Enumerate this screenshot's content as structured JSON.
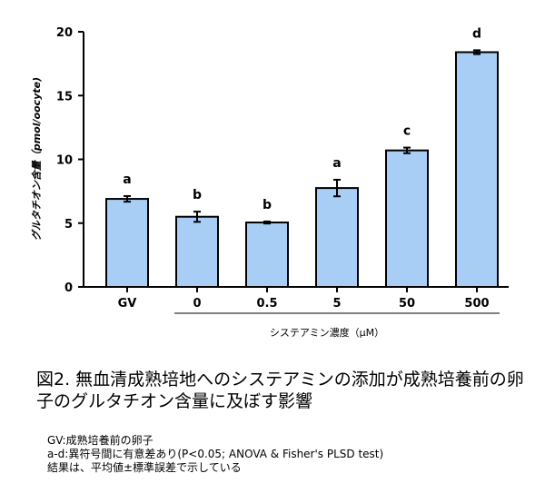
{
  "chart_data": {
    "type": "bar",
    "ylabel": "グルタチオン含量（pmol/oocyte)",
    "xlabel": "システアミン濃度（μM）",
    "categories": [
      "GV",
      "0",
      "0.5",
      "5",
      "50",
      "500"
    ],
    "values": [
      6.9,
      5.5,
      5.05,
      7.75,
      10.7,
      18.4
    ],
    "errors": [
      0.22,
      0.4,
      0.08,
      0.65,
      0.22,
      0.15
    ],
    "significance_letters": [
      "a",
      "b",
      "b",
      "a",
      "c",
      "d"
    ],
    "ylim": [
      0,
      20
    ],
    "yticks": [
      "0",
      "5",
      "10",
      "15",
      "20"
    ],
    "grid": false,
    "bar_color": "#a8cef5"
  },
  "figure": {
    "caption": "図2. 無血清成熟培地へのシステアミンの添加が成熟培養前の卵子のグルタチオン含量に及ぼす影響",
    "notes": [
      "GV:成熟培養前の卵子",
      "a-d:異符号間に有意差あり(P<0.05; ANOVA & Fisher's PLSD test)",
      "結果は、平均値±標準誤差で示している"
    ]
  }
}
